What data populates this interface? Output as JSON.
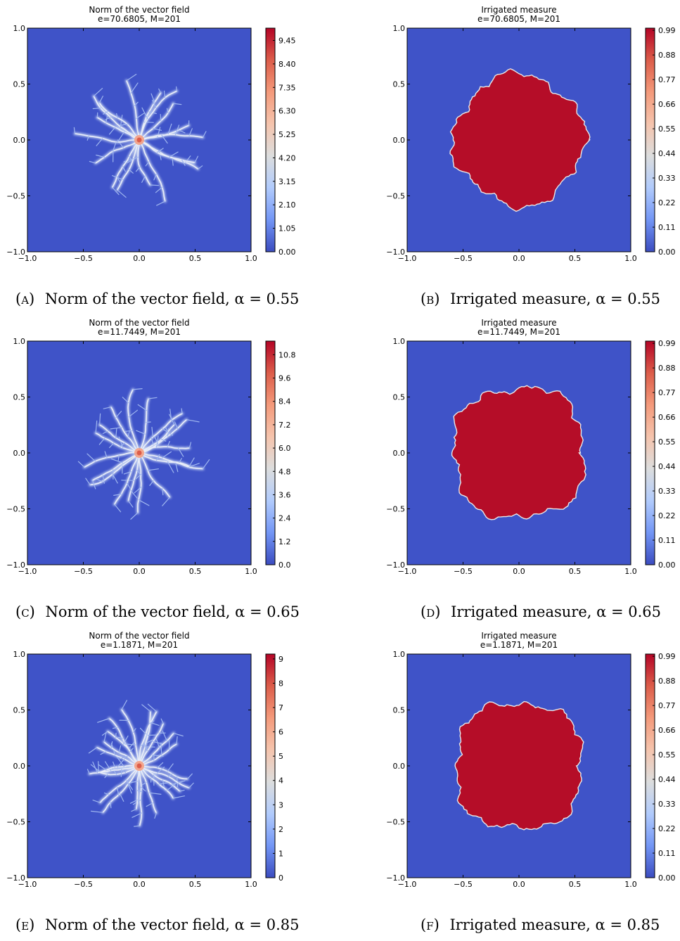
{
  "colors": {
    "cmap": [
      "#3b4cc0",
      "#7396f5",
      "#b1cbfc",
      "#dcdddd",
      "#f5c4ad",
      "#f49a7b",
      "#dc5d4a",
      "#b40426"
    ],
    "background_level": "#3f53c8",
    "irrigated_fill": "#b50d28",
    "boundary": "#e8e8e8"
  },
  "panels": [
    {
      "id": "a",
      "kind": "norm",
      "title_line1": "Norm of the vector field",
      "title_line2": "e=70.6805, M=201",
      "caption_letter": "(a)",
      "caption_text": "Norm of the vector field, α = 0.55",
      "xticks": [
        "−1.0",
        "−0.5",
        "0.0",
        "0.5",
        "1.0"
      ],
      "yticks": [
        "−1.0",
        "−0.5",
        "0.0",
        "0.5",
        "1.0"
      ],
      "cbar_ticks": [
        "0.00",
        "1.05",
        "2.10",
        "3.15",
        "4.20",
        "5.25",
        "6.30",
        "7.35",
        "8.40",
        "9.45"
      ],
      "cbar_max": 10.0,
      "branches": 17,
      "reach": 0.55,
      "seed": 11
    },
    {
      "id": "b",
      "kind": "measure",
      "title_line1": "Irrigated measure",
      "title_line2": "e=70.6805, M=201",
      "caption_letter": "(b)",
      "caption_text": "Irrigated measure, α = 0.55",
      "xticks": [
        "−1.0",
        "−0.5",
        "0.0",
        "0.5",
        "1.0"
      ],
      "yticks": [
        "−1.0",
        "−0.5",
        "0.0",
        "0.5",
        "1.0"
      ],
      "cbar_ticks": [
        "0.00",
        "0.11",
        "0.22",
        "0.33",
        "0.44",
        "0.55",
        "0.66",
        "0.77",
        "0.88",
        "0.99"
      ],
      "cbar_max": 1.0,
      "radius": 0.58,
      "seed": 21
    },
    {
      "id": "c",
      "kind": "norm",
      "title_line1": "Norm of the vector field",
      "title_line2": "e=11.7449, M=201",
      "caption_letter": "(c)",
      "caption_text": "Norm of the vector field, α = 0.65",
      "xticks": [
        "−1.0",
        "−0.5",
        "0.0",
        "0.5",
        "1.0"
      ],
      "yticks": [
        "−1.0",
        "−0.5",
        "0.0",
        "0.5",
        "1.0"
      ],
      "cbar_ticks": [
        "0.0",
        "1.2",
        "2.4",
        "3.6",
        "4.8",
        "6.0",
        "7.2",
        "8.4",
        "9.6",
        "10.8"
      ],
      "cbar_max": 11.5,
      "branches": 18,
      "reach": 0.54,
      "seed": 37
    },
    {
      "id": "d",
      "kind": "measure",
      "title_line1": "Irrigated measure",
      "title_line2": "e=11.7449, M=201",
      "caption_letter": "(d)",
      "caption_text": "Irrigated measure, α = 0.65",
      "xticks": [
        "−1.0",
        "−0.5",
        "0.0",
        "0.5",
        "1.0"
      ],
      "yticks": [
        "−1.0",
        "−0.5",
        "0.0",
        "0.5",
        "1.0"
      ],
      "cbar_ticks": [
        "0.00",
        "0.11",
        "0.22",
        "0.33",
        "0.44",
        "0.55",
        "0.66",
        "0.77",
        "0.88",
        "0.99"
      ],
      "cbar_max": 1.0,
      "radius": 0.6,
      "seed": 43
    },
    {
      "id": "e",
      "kind": "norm",
      "title_line1": "Norm of the vector field",
      "title_line2": "e=1.1871, M=201",
      "caption_letter": "(e)",
      "caption_text": "Norm of the vector field, α = 0.85",
      "xticks": [
        "−1.0",
        "−0.5",
        "0.0",
        "0.5",
        "1.0"
      ],
      "yticks": [
        "−1.0",
        "−0.5",
        "0.0",
        "0.5",
        "1.0"
      ],
      "cbar_ticks": [
        "0",
        "1",
        "2",
        "3",
        "4",
        "5",
        "6",
        "7",
        "8",
        "9"
      ],
      "cbar_max": 9.2,
      "branches": 22,
      "reach": 0.5,
      "seed": 57
    },
    {
      "id": "f",
      "kind": "measure",
      "title_line1": "Irrigated measure",
      "title_line2": "e=1.1871, M=201",
      "caption_letter": "(f)",
      "caption_text": "Irrigated measure, α = 0.85",
      "xticks": [
        "−1.0",
        "−0.5",
        "0.0",
        "0.5",
        "1.0"
      ],
      "yticks": [
        "−1.0",
        "−0.5",
        "0.0",
        "0.5",
        "1.0"
      ],
      "cbar_ticks": [
        "0.00",
        "0.11",
        "0.22",
        "0.33",
        "0.44",
        "0.55",
        "0.66",
        "0.77",
        "0.88",
        "0.99"
      ],
      "cbar_max": 1.0,
      "radius": 0.58,
      "seed": 61
    }
  ],
  "chart_data": [
    {
      "type": "heatmap",
      "title": "Norm of the vector field\ne=70.6805, M=201",
      "xlim": [
        -1.0,
        1.0
      ],
      "ylim": [
        -1.0,
        1.0
      ],
      "colorbar_range": [
        0.0,
        9.45
      ],
      "colorbar_ticks": [
        0.0,
        1.05,
        2.1,
        3.15,
        4.2,
        5.25,
        6.3,
        7.35,
        8.4,
        9.45
      ]
    },
    {
      "type": "heatmap",
      "title": "Irrigated measure\ne=70.6805, M=201",
      "xlim": [
        -1.0,
        1.0
      ],
      "ylim": [
        -1.0,
        1.0
      ],
      "colorbar_range": [
        0.0,
        0.99
      ],
      "colorbar_ticks": [
        0.0,
        0.11,
        0.22,
        0.33,
        0.44,
        0.55,
        0.66,
        0.77,
        0.88,
        0.99
      ]
    },
    {
      "type": "heatmap",
      "title": "Norm of the vector field\ne=11.7449, M=201",
      "xlim": [
        -1.0,
        1.0
      ],
      "ylim": [
        -1.0,
        1.0
      ],
      "colorbar_range": [
        0.0,
        10.8
      ],
      "colorbar_ticks": [
        0.0,
        1.2,
        2.4,
        3.6,
        4.8,
        6.0,
        7.2,
        8.4,
        9.6,
        10.8
      ]
    },
    {
      "type": "heatmap",
      "title": "Irrigated measure\ne=11.7449, M=201",
      "xlim": [
        -1.0,
        1.0
      ],
      "ylim": [
        -1.0,
        1.0
      ],
      "colorbar_range": [
        0.0,
        0.99
      ],
      "colorbar_ticks": [
        0.0,
        0.11,
        0.22,
        0.33,
        0.44,
        0.55,
        0.66,
        0.77,
        0.88,
        0.99
      ]
    },
    {
      "type": "heatmap",
      "title": "Norm of the vector field\ne=1.1871, M=201",
      "xlim": [
        -1.0,
        1.0
      ],
      "ylim": [
        -1.0,
        1.0
      ],
      "colorbar_range": [
        0,
        9
      ],
      "colorbar_ticks": [
        0,
        1,
        2,
        3,
        4,
        5,
        6,
        7,
        8,
        9
      ]
    },
    {
      "type": "heatmap",
      "title": "Irrigated measure\ne=1.1871, M=201",
      "xlim": [
        -1.0,
        1.0
      ],
      "ylim": [
        -1.0,
        1.0
      ],
      "colorbar_range": [
        0.0,
        0.99
      ],
      "colorbar_ticks": [
        0.0,
        0.11,
        0.22,
        0.33,
        0.44,
        0.55,
        0.66,
        0.77,
        0.88,
        0.99
      ]
    }
  ]
}
